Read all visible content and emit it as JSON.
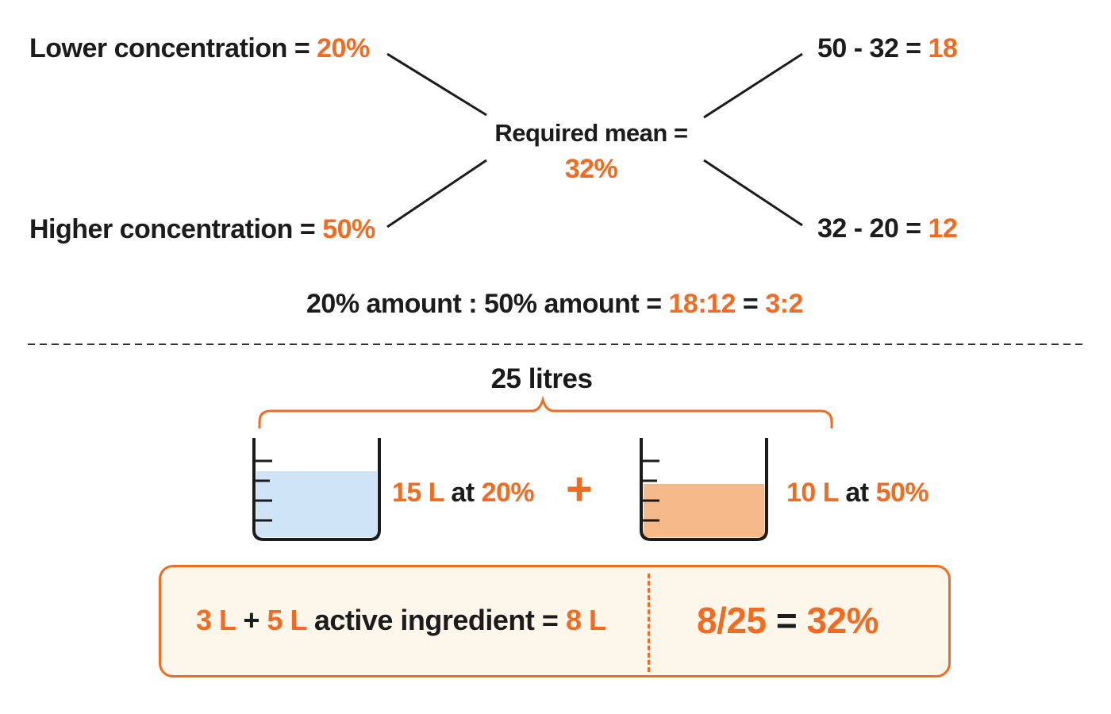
{
  "colors": {
    "accent": "#f26b21",
    "text": "#1c1c1c",
    "water": "#cfe5f7",
    "orange_liquid": "#f5b98a",
    "panel": "#fdf6ea"
  },
  "top": {
    "lower": {
      "label": "Lower concentration =",
      "value": "20%"
    },
    "higher": {
      "label": "Higher concentration =",
      "value": "50%"
    },
    "mean": {
      "label": "Required mean =",
      "value": "32%"
    },
    "diff_top": {
      "expr": "50 - 32 =",
      "value": "18"
    },
    "diff_bottom": {
      "expr": "32 - 20 =",
      "value": "12"
    },
    "ratio": {
      "label": "20% amount : 50% amount =",
      "value1": "18:12",
      "eq": "=",
      "value2": "3:2"
    }
  },
  "bottom": {
    "total": "25 litres",
    "beaker1": {
      "amount": "15 L",
      "at": "at",
      "conc": "20%",
      "fill_fraction": 0.6
    },
    "plus": "+",
    "beaker2": {
      "amount": "10 L",
      "at": "at",
      "conc": "50%",
      "fill_fraction": 0.5
    },
    "summary": {
      "part1": "3 L",
      "plus": "+",
      "part2": "5 L",
      "mid": "active ingredient =",
      "total": "8 L",
      "fraction": "8/25",
      "eq": "=",
      "result": "32%"
    }
  }
}
